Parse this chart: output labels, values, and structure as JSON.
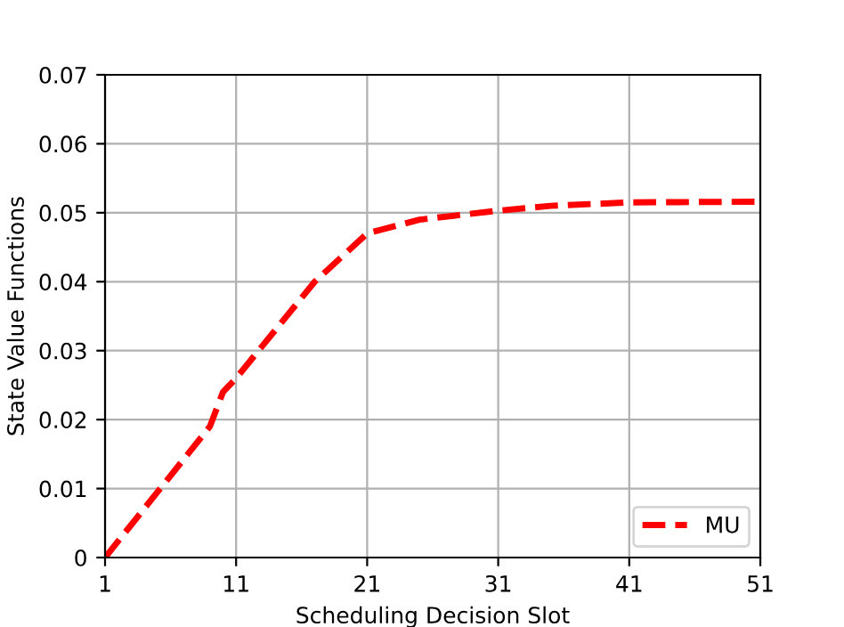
{
  "chart_data": {
    "type": "line",
    "xlabel": "Scheduling Decision Slot",
    "ylabel": "State Value Functions",
    "x": [
      1,
      5,
      9,
      10,
      11,
      14,
      17,
      21,
      25,
      31,
      35,
      41,
      51
    ],
    "series": [
      {
        "name": "MU",
        "color": "#ff0000",
        "values": [
          0,
          0.0095,
          0.019,
          0.024,
          0.026,
          0.033,
          0.04,
          0.047,
          0.049,
          0.0503,
          0.051,
          0.0515,
          0.0516
        ]
      }
    ],
    "xlim": [
      1,
      51
    ],
    "xticks": [
      1,
      11,
      21,
      31,
      41,
      51
    ],
    "ylim": [
      0,
      0.07
    ],
    "yticks": [
      0,
      0.01,
      0.02,
      0.03,
      0.04,
      0.05,
      0.06,
      0.07
    ],
    "grid": true,
    "legend": "lower right",
    "line_style": "dashed",
    "marker": "none"
  }
}
